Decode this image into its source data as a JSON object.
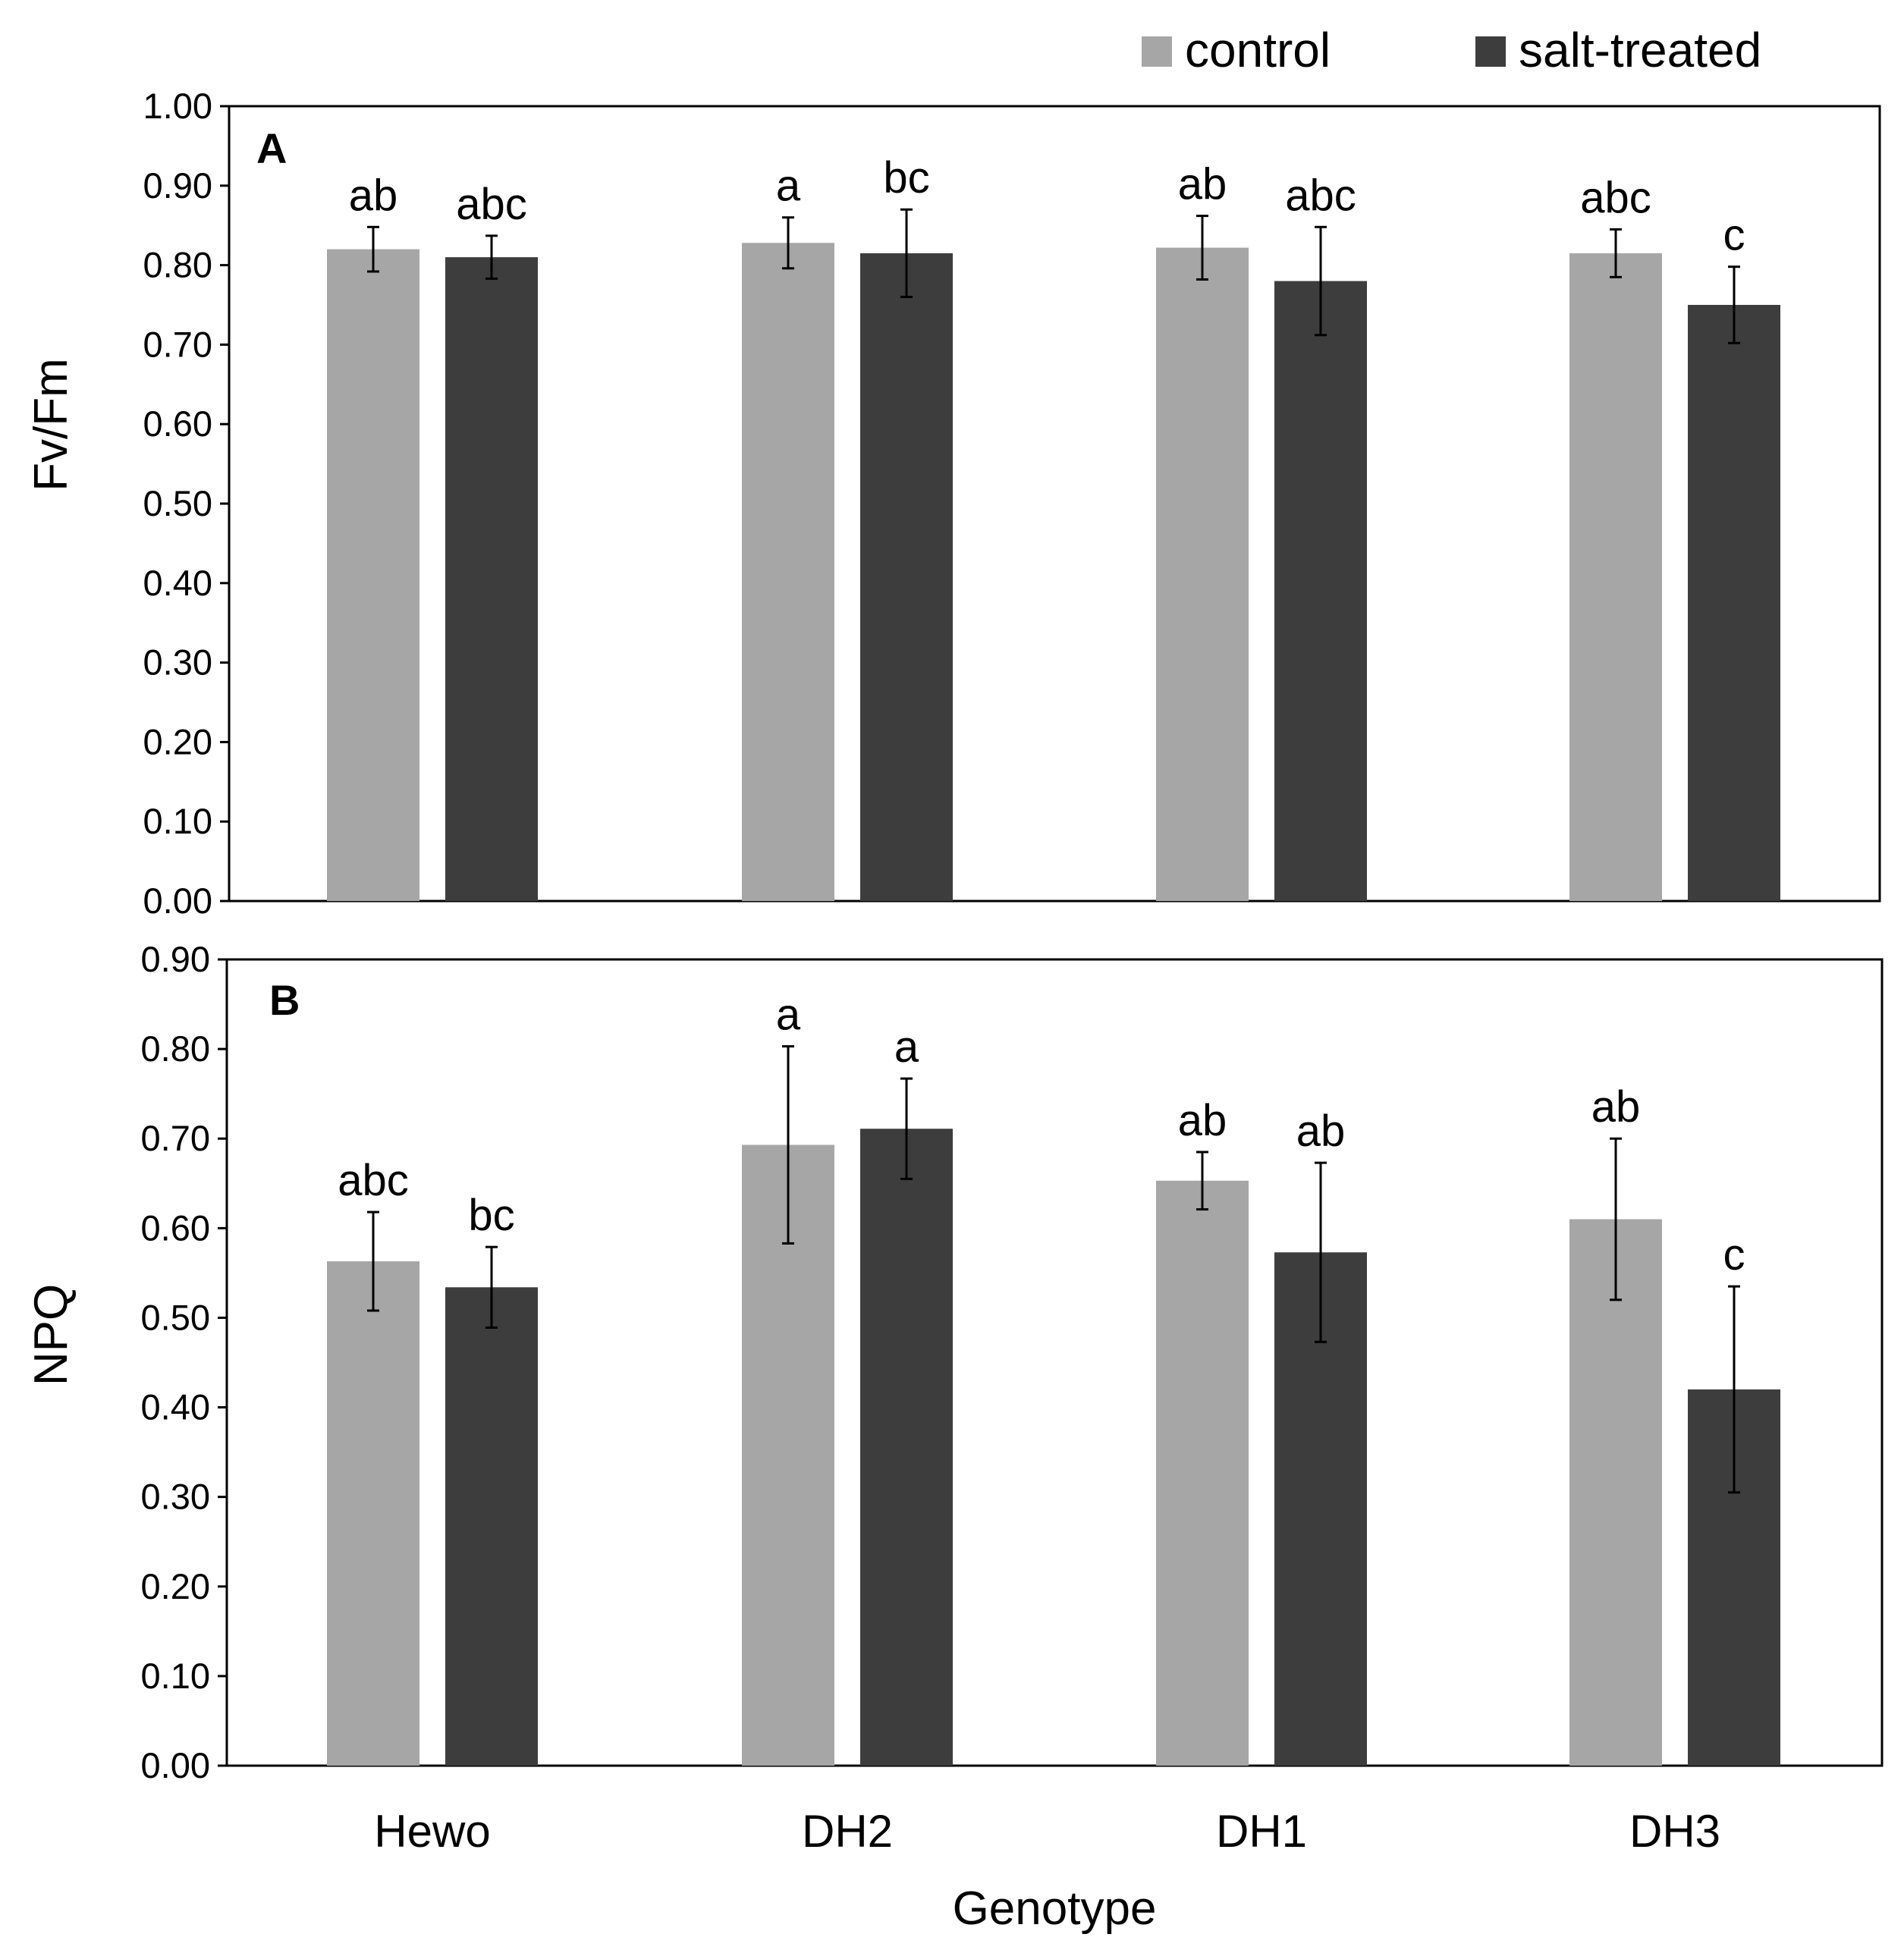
{
  "chart_data": {
    "type": "bar",
    "xlabel": "Genotype",
    "categories": [
      "Hewo",
      "DH2",
      "DH1",
      "DH3"
    ],
    "legend": {
      "placement": "top-right",
      "entries": [
        {
          "name": "control",
          "color": "#a6a6a6"
        },
        {
          "name": "salt-treated",
          "color": "#3d3d3d"
        }
      ]
    },
    "panels": [
      {
        "label": "A",
        "ylabel": "Fv/Fm",
        "ylim": [
          0,
          1.0
        ],
        "yticks": [
          "0.00",
          "0.10",
          "0.20",
          "0.30",
          "0.40",
          "0.50",
          "0.60",
          "0.70",
          "0.80",
          "0.90",
          "1.00"
        ],
        "series": [
          {
            "name": "control",
            "values": [
              0.82,
              0.828,
              0.822,
              0.815
            ],
            "errors": [
              0.028,
              0.032,
              0.04,
              0.03
            ],
            "letters": [
              "ab",
              "a",
              "ab",
              "abc"
            ]
          },
          {
            "name": "salt-treated",
            "values": [
              0.81,
              0.815,
              0.78,
              0.75
            ],
            "errors": [
              0.027,
              0.055,
              0.068,
              0.048
            ],
            "letters": [
              "abc",
              "bc",
              "abc",
              "c"
            ]
          }
        ]
      },
      {
        "label": "B",
        "ylabel": "NPQ",
        "ylim": [
          0,
          0.9
        ],
        "yticks": [
          "0.00",
          "0.10",
          "0.20",
          "0.30",
          "0.40",
          "0.50",
          "0.60",
          "0.70",
          "0.80",
          "0.90"
        ],
        "series": [
          {
            "name": "control",
            "values": [
              0.563,
              0.693,
              0.653,
              0.61
            ],
            "errors": [
              0.055,
              0.11,
              0.032,
              0.09
            ],
            "letters": [
              "abc",
              "a",
              "ab",
              "ab"
            ]
          },
          {
            "name": "salt-treated",
            "values": [
              0.534,
              0.711,
              0.573,
              0.42
            ],
            "errors": [
              0.045,
              0.056,
              0.1,
              0.115
            ],
            "letters": [
              "bc",
              "a",
              "ab",
              "c"
            ]
          }
        ]
      }
    ]
  }
}
